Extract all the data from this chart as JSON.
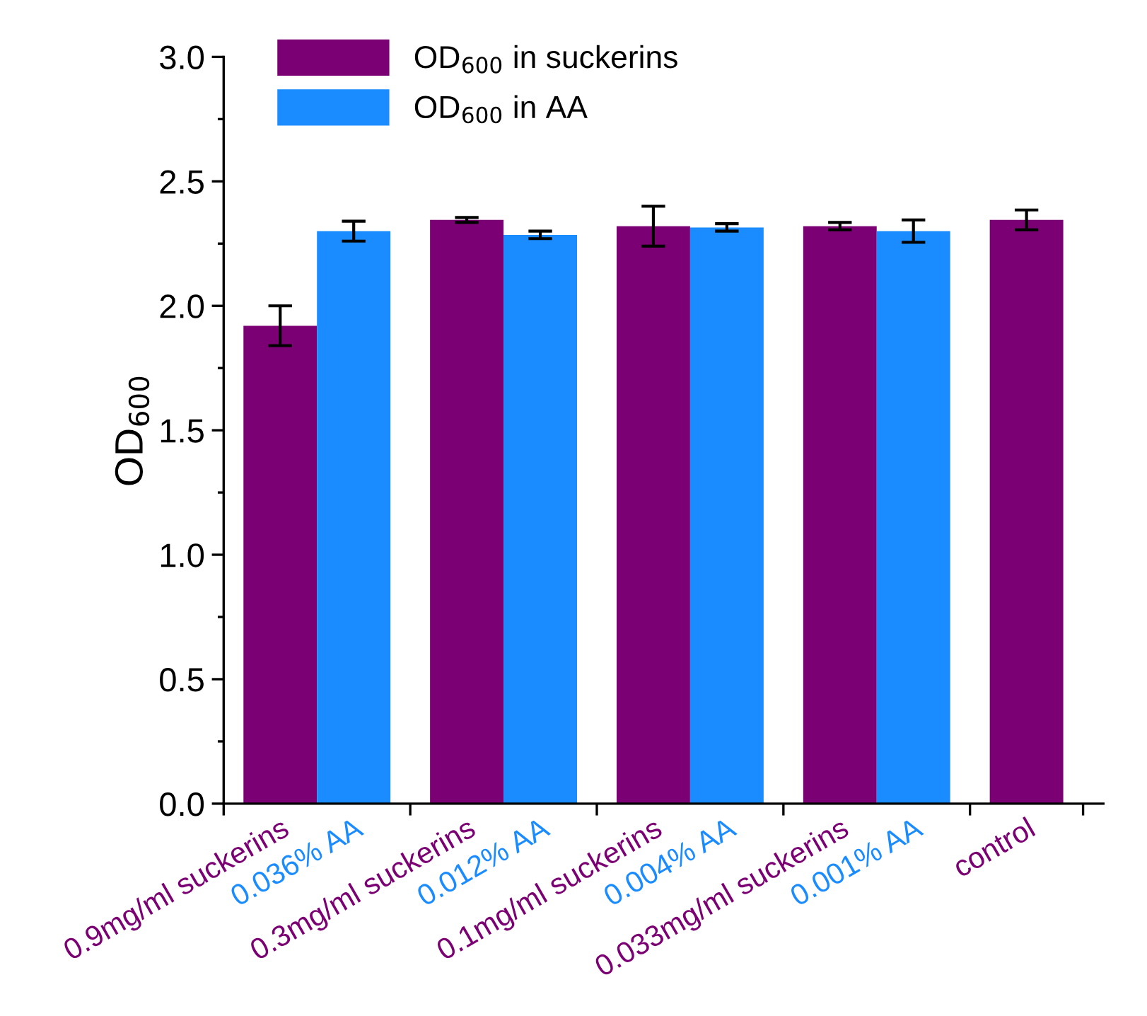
{
  "chart_data": {
    "type": "bar",
    "ylabel": "OD$_{600}$",
    "categories": [
      "0.9mg/ml suckerins",
      "0.036% AA",
      "0.3mg/ml suckerins",
      "0.012% AA",
      "0.1mg/ml suckerins",
      "0.004% AA",
      "0.033mg/ml suckerins",
      "0.001% AA",
      "control"
    ],
    "series": [
      {
        "name": "OD$_{600}$ in suckerins",
        "color": "#7b0073",
        "values": [
          1.92,
          null,
          2.345,
          null,
          2.32,
          null,
          2.32,
          null,
          2.345
        ],
        "errors": [
          0.08,
          null,
          0.01,
          null,
          0.08,
          null,
          0.015,
          null,
          0.04
        ]
      },
      {
        "name": "OD$_{600}$ in AA",
        "color": "#1a8cff",
        "values": [
          null,
          2.3,
          null,
          2.285,
          null,
          2.315,
          null,
          2.3,
          null
        ],
        "errors": [
          null,
          0.04,
          null,
          0.015,
          null,
          0.015,
          null,
          0.045,
          null
        ]
      }
    ],
    "ylim": [
      0,
      3
    ],
    "yticks": [
      {
        "value": 0,
        "label": "0.0"
      },
      0.5,
      {
        "value": 1,
        "label": "1.0"
      },
      1.5,
      {
        "value": 2,
        "label": "2.0"
      },
      2.5,
      {
        "value": 3,
        "label": "3.0"
      }
    ],
    "legend": "top left",
    "grid": false
  }
}
